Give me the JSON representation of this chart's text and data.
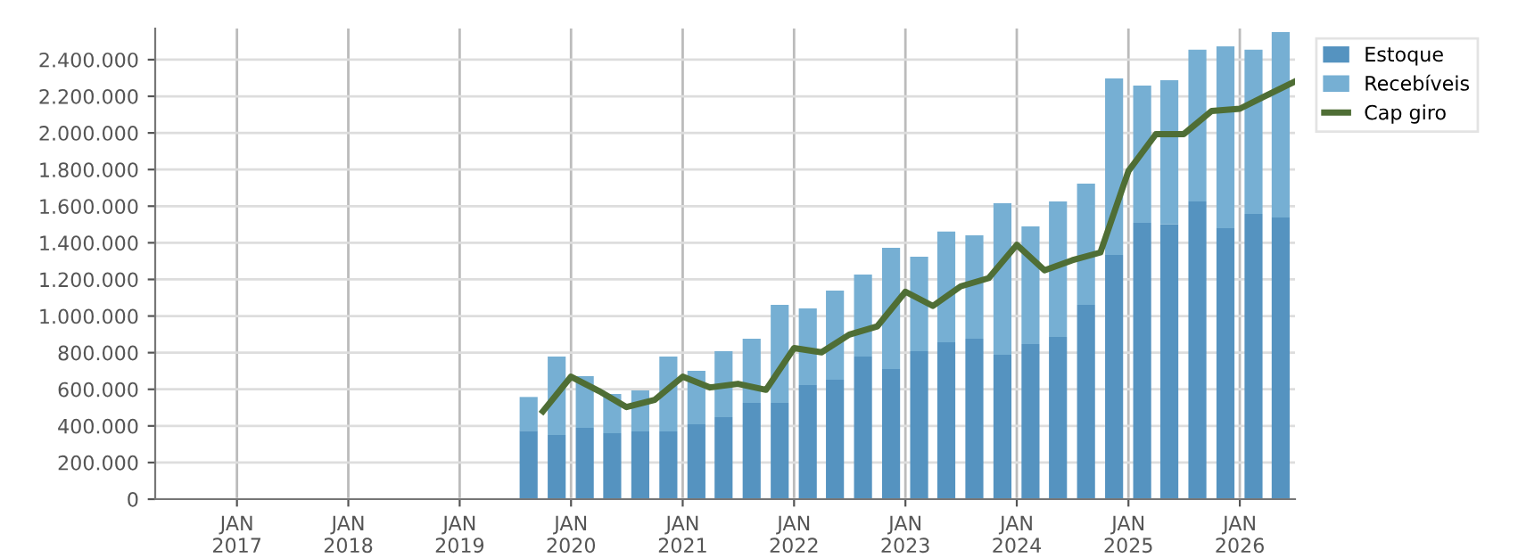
{
  "chart_data": {
    "type": "bar",
    "stacked": true,
    "x": [
      "2019-08-15",
      "2019-11-15",
      "2020-02-15",
      "2020-05-15",
      "2020-08-15",
      "2020-11-15",
      "2021-02-15",
      "2021-05-15",
      "2021-08-15",
      "2021-11-15",
      "2022-02-15",
      "2022-05-15",
      "2022-08-15",
      "2022-11-15",
      "2023-02-15",
      "2023-05-15",
      "2023-08-15",
      "2023-11-15",
      "2024-02-15",
      "2024-05-15",
      "2024-08-15",
      "2024-11-15",
      "2025-02-15",
      "2025-05-15",
      "2025-08-15",
      "2025-11-15",
      "2026-02-15",
      "2026-05-15"
    ],
    "series": [
      {
        "name": "Estoque",
        "color": "#5593c0",
        "values": [
          373000,
          350000,
          389000,
          360000,
          370000,
          370000,
          409000,
          448000,
          526000,
          526000,
          623000,
          652000,
          779000,
          711000,
          808000,
          857000,
          876000,
          789000,
          847000,
          886000,
          1061000,
          1334000,
          1509000,
          1500000,
          1626000,
          1480000,
          1558000,
          1538000
        ]
      },
      {
        "name": "Recebíveis",
        "color": "#76afd3",
        "values": [
          185000,
          429000,
          283000,
          214000,
          224000,
          409000,
          292000,
          360000,
          350000,
          535000,
          419000,
          487000,
          448000,
          662000,
          516000,
          604000,
          565000,
          827000,
          643000,
          740000,
          662000,
          964000,
          750000,
          788000,
          828000,
          993000,
          896000,
          1013000
        ]
      },
      {
        "name": "Cap giro",
        "type": "line",
        "color": "#4f6e35",
        "x": [
          "2019-10-01",
          "2020-01-01",
          "2020-04-01",
          "2020-07-01",
          "2020-10-01",
          "2021-01-01",
          "2021-04-01",
          "2021-07-01",
          "2021-10-01",
          "2022-01-01",
          "2022-04-01",
          "2022-07-01",
          "2022-10-01",
          "2023-01-01",
          "2023-04-01",
          "2023-07-01",
          "2023-10-01",
          "2024-01-01",
          "2024-04-01",
          "2024-07-01",
          "2024-10-01",
          "2025-01-01",
          "2025-04-01",
          "2025-07-01",
          "2025-10-01",
          "2026-01-01",
          "2026-04-01",
          "2026-07-01"
        ],
        "values": [
          480000,
          669000,
          591000,
          503000,
          542000,
          669000,
          610000,
          630000,
          597000,
          825000,
          802000,
          899000,
          944000,
          1133000,
          1055000,
          1162000,
          1207000,
          1389000,
          1250000,
          1305000,
          1347000,
          1792000,
          1993000,
          1993000,
          2120000,
          2132000,
          2207000,
          2281000
        ]
      }
    ],
    "xlim": [
      "2016-04-08",
      "2026-07-01"
    ],
    "xticks": [
      {
        "value": "2017-01-01",
        "label": "JAN\n2017"
      },
      {
        "value": "2018-01-01",
        "label": "JAN\n2018"
      },
      {
        "value": "2019-01-01",
        "label": "JAN\n2019"
      },
      {
        "value": "2020-01-01",
        "label": "JAN\n2020"
      },
      {
        "value": "2021-01-01",
        "label": "JAN\n2021"
      },
      {
        "value": "2022-01-01",
        "label": "JAN\n2022"
      },
      {
        "value": "2023-01-01",
        "label": "JAN\n2023"
      },
      {
        "value": "2024-01-01",
        "label": "JAN\n2024"
      },
      {
        "value": "2025-01-01",
        "label": "JAN\n2025"
      },
      {
        "value": "2026-01-01",
        "label": "JAN\n2026"
      }
    ],
    "ylim": [
      0,
      2570000
    ],
    "yticks": [
      {
        "value": 0,
        "label": "0"
      },
      {
        "value": 200000,
        "label": "200.000"
      },
      {
        "value": 400000,
        "label": "400.000"
      },
      {
        "value": 600000,
        "label": "600.000"
      },
      {
        "value": 800000,
        "label": "800.000"
      },
      {
        "value": 1000000,
        "label": "1.000.000"
      },
      {
        "value": 1200000,
        "label": "1.200.000"
      },
      {
        "value": 1400000,
        "label": "1.400.000"
      },
      {
        "value": 1600000,
        "label": "1.600.000"
      },
      {
        "value": 1800000,
        "label": "1.800.000"
      },
      {
        "value": 2000000,
        "label": "2.000.000"
      },
      {
        "value": 2200000,
        "label": "2.200.000"
      },
      {
        "value": 2400000,
        "label": "2.400.000"
      }
    ],
    "grid": true,
    "legend": "top right",
    "marker": "none",
    "line_style": "solid"
  }
}
